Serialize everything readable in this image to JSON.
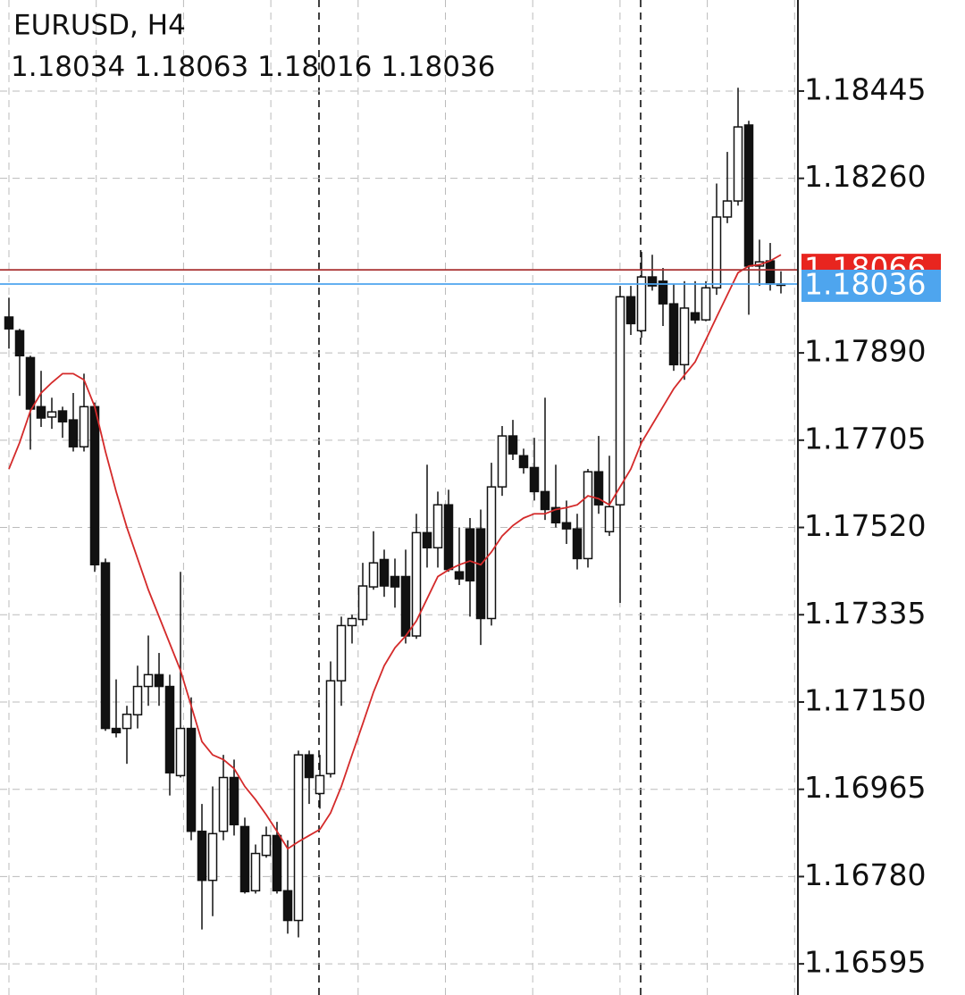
{
  "chart_data": {
    "type": "candlestick",
    "title": "EURUSD, H4",
    "open": [
      1.17966,
      1.17937,
      1.1788,
      1.17776,
      1.17754,
      1.17767,
      1.17748,
      1.17691,
      1.17776,
      1.17445,
      1.17094,
      1.17094,
      1.17123,
      1.17183,
      1.17208,
      1.17183,
      1.16994,
      1.17094,
      1.16876,
      1.16772,
      1.16876,
      1.1699,
      1.16886,
      1.1675,
      1.16825,
      1.16867,
      1.1675,
      1.16687,
      1.17038,
      1.16956,
      1.16998,
      1.17195,
      1.17312,
      1.17325,
      1.17394,
      1.17452,
      1.17416,
      1.17416,
      1.1729,
      1.17509,
      1.17477,
      1.17568,
      1.17426,
      1.17517,
      1.17517,
      1.17327,
      1.17606,
      1.17714,
      1.17672,
      1.17647,
      1.17596,
      1.17562,
      1.1753,
      1.17517,
      1.17454,
      1.17638,
      1.17511,
      1.17568,
      1.18009,
      1.17937,
      1.18051,
      1.18042,
      1.17994,
      1.17865,
      1.17975,
      1.1796,
      1.18028,
      1.18178,
      1.18212,
      1.18373,
      1.18074,
      1.18085,
      1.18034
    ],
    "high": [
      1.18007,
      1.17941,
      1.17884,
      1.17852,
      1.17795,
      1.17776,
      1.17805,
      1.17846,
      1.17785,
      1.17454,
      1.17198,
      1.17142,
      1.17227,
      1.17291,
      1.17254,
      1.17208,
      1.17426,
      1.1716,
      1.16934,
      1.16971,
      1.17038,
      1.17028,
      1.16905,
      1.16848,
      1.16886,
      1.16896,
      1.16857,
      1.17047,
      1.17047,
      1.17038,
      1.17236,
      1.17331,
      1.17335,
      1.17445,
      1.17512,
      1.17473,
      1.17454,
      1.17473,
      1.17549,
      1.17653,
      1.17596,
      1.176,
      1.1752,
      1.1754,
      1.17558,
      1.17657,
      1.17735,
      1.17748,
      1.17687,
      1.1771,
      1.17795,
      1.17653,
      1.17577,
      1.17549,
      1.17644,
      1.17714,
      1.17672,
      1.18032,
      1.18032,
      1.18104,
      1.18098,
      1.1807,
      1.18036,
      1.18042,
      1.18042,
      1.18042,
      1.18249,
      1.18316,
      1.18452,
      1.18382,
      1.1813,
      1.18123,
      1.18063
    ],
    "low": [
      1.17899,
      1.17799,
      1.17685,
      1.17733,
      1.17729,
      1.1771,
      1.17681,
      1.17681,
      1.17426,
      1.17089,
      1.17075,
      1.17019,
      1.17094,
      1.17142,
      1.17142,
      1.16952,
      1.1699,
      1.16857,
      1.16668,
      1.16696,
      1.16857,
      1.16867,
      1.16744,
      1.16744,
      1.1682,
      1.16744,
      1.16659,
      1.16651,
      1.16934,
      1.16924,
      1.1699,
      1.17142,
      1.17274,
      1.17312,
      1.17388,
      1.17373,
      1.1735,
      1.17274,
      1.17284,
      1.17435,
      1.17435,
      1.17426,
      1.17398,
      1.17331,
      1.17271,
      1.17312,
      1.17587,
      1.17663,
      1.17634,
      1.17577,
      1.17536,
      1.1752,
      1.17485,
      1.17431,
      1.17435,
      1.17549,
      1.17502,
      1.1736,
      1.17928,
      1.17922,
      1.18022,
      1.17947,
      1.17852,
      1.17833,
      1.17952,
      1.17957,
      1.18013,
      1.18165,
      1.18202,
      1.17971,
      1.18032,
      1.18022,
      1.18016
    ],
    "close": [
      1.17941,
      1.17884,
      1.17771,
      1.17752,
      1.17765,
      1.17744,
      1.17691,
      1.17776,
      1.17441,
      1.17094,
      1.17085,
      1.17124,
      1.17183,
      1.17208,
      1.17183,
      1.17,
      1.17094,
      1.16876,
      1.16772,
      1.16871,
      1.1699,
      1.1689,
      1.16748,
      1.16829,
      1.16867,
      1.1675,
      1.16687,
      1.17038,
      1.1699,
      1.16994,
      1.17195,
      1.17312,
      1.17327,
      1.17396,
      1.17445,
      1.17396,
      1.17394,
      1.1729,
      1.17509,
      1.17477,
      1.17568,
      1.17431,
      1.17411,
      1.17407,
      1.17327,
      1.17606,
      1.17714,
      1.17676,
      1.17647,
      1.17596,
      1.17558,
      1.1753,
      1.17517,
      1.17454,
      1.17638,
      1.17568,
      1.17564,
      1.18009,
      1.17952,
      1.18051,
      1.18032,
      1.17994,
      1.17865,
      1.17985,
      1.1796,
      1.18028,
      1.18178,
      1.18212,
      1.18369,
      1.18074,
      1.18083,
      1.18036,
      1.18036
    ],
    "ma": {
      "color": "#d42a2a",
      "values": [
        1.17644,
        1.177,
        1.17767,
        1.17805,
        1.17827,
        1.17846,
        1.17846,
        1.17833,
        1.17776,
        1.17681,
        1.17596,
        1.1752,
        1.17454,
        1.17388,
        1.17331,
        1.17274,
        1.17217,
        1.17142,
        1.17066,
        1.17038,
        1.17028,
        1.17009,
        1.16971,
        1.16943,
        1.16911,
        1.16876,
        1.16839,
        1.16854,
        1.16867,
        1.1688,
        1.16915,
        1.16971,
        1.17038,
        1.17104,
        1.17171,
        1.17227,
        1.17265,
        1.1729,
        1.17322,
        1.17369,
        1.17416,
        1.1743,
        1.17441,
        1.17449,
        1.17441,
        1.17468,
        1.17502,
        1.17524,
        1.1754,
        1.17549,
        1.17549,
        1.17558,
        1.17562,
        1.17568,
        1.17587,
        1.17581,
        1.17568,
        1.17606,
        1.17644,
        1.177,
        1.17738,
        1.17776,
        1.17814,
        1.17843,
        1.17871,
        1.17918,
        1.17966,
        1.18013,
        1.1806,
        1.18074,
        1.18077,
        1.18085,
        1.18098
      ]
    },
    "ask": 1.18066,
    "ask_color": "#e8251f",
    "bid": 1.18036,
    "bid_color": "#4ea5ee",
    "ylim": [
      1.16529,
      1.18638
    ],
    "yticks": [
      1.18445,
      {
        "value": 1.1826,
        "label": "1.18260"
      },
      {
        "value": 1.1789,
        "label": "1.17890"
      },
      1.17705,
      {
        "value": 1.1752,
        "label": "1.17520"
      },
      1.17335,
      {
        "value": 1.1715,
        "label": "1.17150"
      },
      1.16965,
      {
        "value": 1.1678,
        "label": "1.16780"
      },
      1.16595
    ],
    "grid": true
  }
}
